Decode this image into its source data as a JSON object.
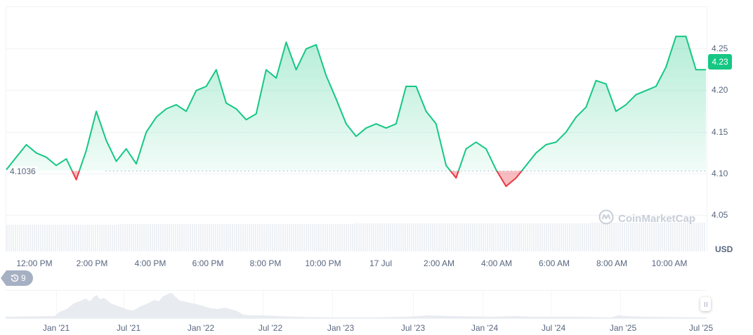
{
  "chart_data": {
    "type": "area",
    "title": "",
    "currency": "USD",
    "ylabel": "USD",
    "xlabel": "",
    "ylim": [
      4.03,
      4.28
    ],
    "y_ticks": [
      "4.25",
      "4.20",
      "4.15",
      "4.10",
      "4.05"
    ],
    "x_ticks": [
      "12:00 PM",
      "2:00 PM",
      "4:00 PM",
      "6:00 PM",
      "8:00 PM",
      "10:00 PM",
      "17 Jul",
      "2:00 AM",
      "4:00 AM",
      "6:00 AM",
      "8:00 AM",
      "10:00 AM"
    ],
    "baseline": 4.1036,
    "current_price": "4.23",
    "grid": true,
    "colors": {
      "up": "#16c784",
      "down": "#ea3943",
      "up_fill": "#16c784",
      "down_fill": "#ea3943"
    },
    "series": [
      {
        "name": "Price",
        "x": [
          "11:10 AM",
          "11:40 AM",
          "12:00 PM",
          "12:30 PM",
          "1:00 PM",
          "1:20 PM",
          "1:40 PM",
          "2:00 PM",
          "2:10 PM",
          "2:20 PM",
          "2:40 PM",
          "3:00 PM",
          "3:20 PM",
          "3:40 PM",
          "4:00 PM",
          "4:20 PM",
          "4:40 PM",
          "5:00 PM",
          "5:30 PM",
          "6:00 PM",
          "6:20 PM",
          "6:40 PM",
          "7:00 PM",
          "7:20 PM",
          "7:40 PM",
          "8:00 PM",
          "8:20 PM",
          "8:40 PM",
          "9:00 PM",
          "9:20 PM",
          "9:40 PM",
          "10:00 PM",
          "10:20 PM",
          "10:40 PM",
          "11:00 PM",
          "11:20 PM",
          "11:40 PM",
          "12:00 AM",
          "12:20 AM",
          "12:40 AM",
          "1:00 AM",
          "1:20 AM",
          "1:40 AM",
          "2:00 AM",
          "2:20 AM",
          "2:40 AM",
          "3:00 AM",
          "3:20 AM",
          "3:40 AM",
          "4:00 AM",
          "4:20 AM",
          "4:40 AM",
          "5:00 AM",
          "5:20 AM",
          "5:40 AM",
          "6:00 AM",
          "6:20 AM",
          "6:40 AM",
          "7:00 AM",
          "7:20 AM",
          "7:40 AM",
          "8:00 AM",
          "8:20 AM",
          "8:40 AM",
          "9:00 AM",
          "9:20 AM",
          "9:40 AM",
          "10:00 AM",
          "10:20 AM",
          "10:40 AM",
          "11:00 AM"
        ],
        "values": [
          4.105,
          4.12,
          4.135,
          4.125,
          4.12,
          4.11,
          4.118,
          4.093,
          4.128,
          4.175,
          4.14,
          4.115,
          4.13,
          4.112,
          4.15,
          4.168,
          4.178,
          4.183,
          4.175,
          4.2,
          4.205,
          4.225,
          4.185,
          4.178,
          4.165,
          4.172,
          4.225,
          4.215,
          4.258,
          4.225,
          4.25,
          4.255,
          4.218,
          4.19,
          4.16,
          4.145,
          4.155,
          4.16,
          4.155,
          4.16,
          4.205,
          4.205,
          4.175,
          4.16,
          4.11,
          4.095,
          4.13,
          4.138,
          4.13,
          4.105,
          4.085,
          4.095,
          4.11,
          4.125,
          4.135,
          4.138,
          4.15,
          4.168,
          4.18,
          4.212,
          4.208,
          4.175,
          4.183,
          4.195,
          4.2,
          4.205,
          4.228,
          4.265,
          4.265,
          4.225,
          4.225
        ]
      }
    ],
    "volume": "uniform light bars across the range",
    "navigator": {
      "x_ticks": [
        "Jan '21",
        "Jul '21",
        "Jan '22",
        "Jul '22",
        "Jan '23",
        "Jul '23",
        "Jan '24",
        "Jul '24",
        "Jan '25",
        "Jul '25"
      ]
    }
  },
  "header": {},
  "axis": {
    "y_ticks": [
      "4.25",
      "4.20",
      "4.15",
      "4.10",
      "4.05"
    ],
    "currency_label": "USD",
    "current_price": "4.23",
    "baseline_label": "4.1036"
  },
  "xaxis": [
    "12:00 PM",
    "2:00 PM",
    "4:00 PM",
    "6:00 PM",
    "8:00 PM",
    "10:00 PM",
    "17 Jul",
    "2:00 AM",
    "4:00 AM",
    "6:00 AM",
    "8:00 AM",
    "10:00 AM"
  ],
  "history_badge": {
    "icon": "history-icon",
    "count": "9"
  },
  "watermark": {
    "text": "CoinMarketCap",
    "icon": "coinmarketcap-logo-icon"
  },
  "navigator": {
    "ticks": [
      "Jan '21",
      "Jul '21",
      "Jan '22",
      "Jul '22",
      "Jan '23",
      "Jul '23",
      "Jan '24",
      "Jul '24",
      "Jan '25",
      "Jul '25"
    ],
    "handle_icon": "drag-handle-icon"
  }
}
